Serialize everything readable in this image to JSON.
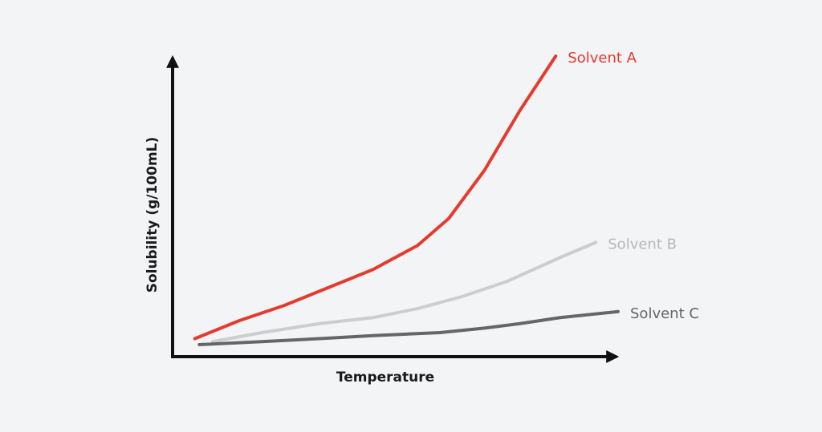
{
  "chart_data": {
    "type": "line",
    "x_label": "Temperature",
    "y_label": "Solubility (g/100mL)",
    "xlim": [
      0,
      100
    ],
    "ylim": [
      0,
      100
    ],
    "series": [
      {
        "name": "Solvent A",
        "color": "#e53b2f",
        "x": [
          5,
          15,
          25,
          35,
          45,
          55,
          62,
          70,
          78,
          86
        ],
        "values": [
          6,
          12,
          17,
          23,
          29,
          37,
          46,
          62,
          82,
          100
        ]
      },
      {
        "name": "Solvent B",
        "color": "#cdcdcd",
        "x": [
          9,
          20,
          33,
          45,
          55,
          65,
          75,
          87,
          95
        ],
        "values": [
          5,
          8,
          11,
          13,
          16,
          20,
          25,
          33,
          38
        ]
      },
      {
        "name": "Solvent C",
        "color": "#666666",
        "x": [
          6,
          20,
          33,
          45,
          60,
          70,
          78,
          87,
          100
        ],
        "values": [
          4,
          5,
          6,
          7,
          8,
          9.5,
          11,
          13,
          15
        ]
      }
    ]
  }
}
